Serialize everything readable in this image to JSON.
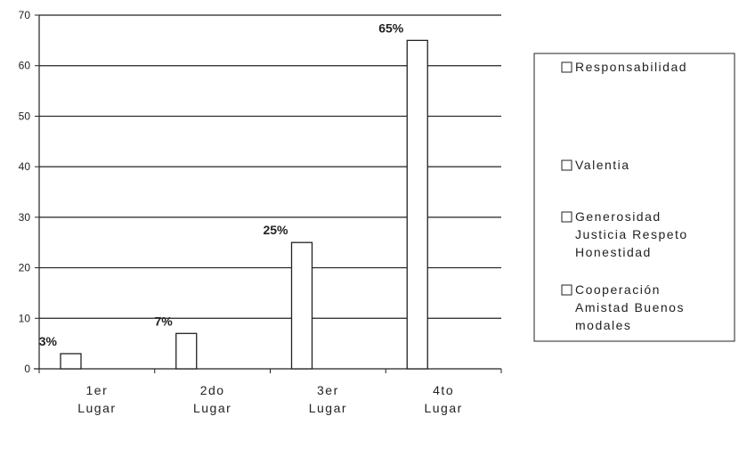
{
  "chart_data": {
    "type": "bar",
    "categories": [
      [
        "1er",
        "Lugar"
      ],
      [
        "2do",
        "Lugar"
      ],
      [
        "3er",
        "Lugar"
      ],
      [
        "4to",
        "Lugar"
      ]
    ],
    "values": [
      3,
      7,
      25,
      65
    ],
    "data_labels": [
      "3%",
      "7%",
      "25%",
      "65%"
    ],
    "ylim": [
      0,
      70
    ],
    "yticks": [
      0,
      10,
      20,
      30,
      40,
      50,
      60,
      70
    ],
    "grid": true,
    "legend_position": "right",
    "legend": [
      [
        "Responsabilidad"
      ],
      [
        "Valentia"
      ],
      [
        "Generosidad",
        "Justicia Respeto",
        "Honestidad"
      ],
      [
        "Cooperación",
        "Amistad Buenos",
        "modales"
      ]
    ],
    "colors": {
      "bar_fill": "#ffffff",
      "bar_stroke": "#222222",
      "grid": "#222222",
      "text": "#222222"
    }
  }
}
